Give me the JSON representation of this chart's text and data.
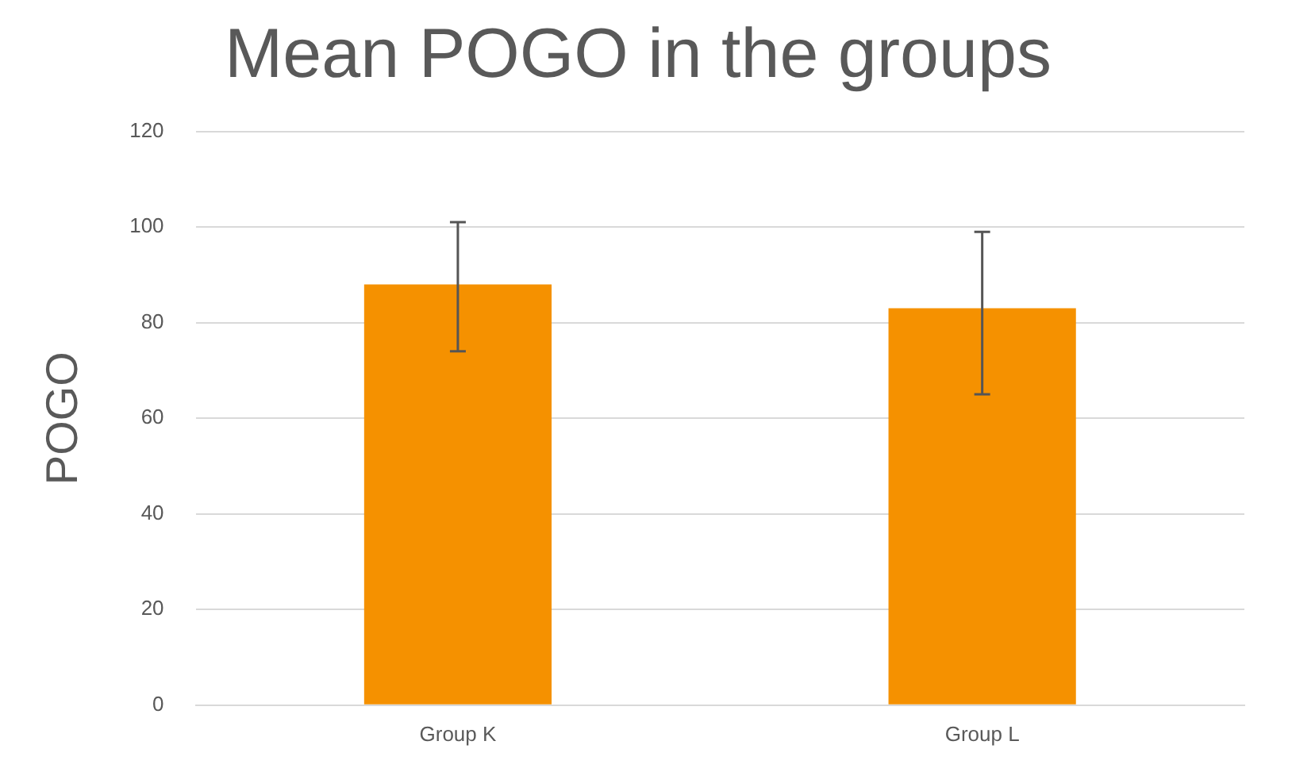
{
  "chart_data": {
    "type": "bar",
    "title": "Mean POGO in the groups",
    "ylabel": "POGO",
    "categories": [
      "Group K",
      "Group L"
    ],
    "values": [
      88,
      83
    ],
    "errors": [
      [
        74,
        101
      ],
      [
        65,
        99
      ]
    ],
    "color": "#f59100",
    "ylim": [
      0,
      120
    ],
    "yticks": [
      0,
      20,
      40,
      60,
      80,
      100,
      120
    ],
    "grid": "y",
    "legend": false
  }
}
